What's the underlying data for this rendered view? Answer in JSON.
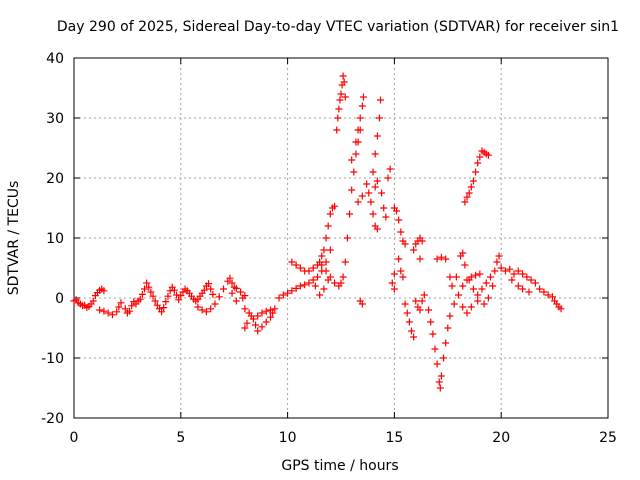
{
  "chart_data": {
    "type": "scatter",
    "title": "Day 290 of 2025, Sidereal Day-to-day VTEC variation (SDTVAR) for receiver sin1",
    "xlabel": "GPS time / hours",
    "ylabel": "SDTVAR / TECUs",
    "xlim": [
      0,
      25
    ],
    "ylim": [
      -20,
      40
    ],
    "xticks": [
      0,
      5,
      10,
      15,
      20,
      25
    ],
    "yticks": [
      -20,
      -10,
      0,
      10,
      20,
      30,
      40
    ],
    "grid": true,
    "marker": "+",
    "series": [
      {
        "name": "SDTVAR",
        "color": "#ff0000",
        "points": [
          [
            0.0,
            -0.5
          ],
          [
            0.1,
            -0.3
          ],
          [
            0.2,
            -0.8
          ],
          [
            0.3,
            -1.0
          ],
          [
            0.4,
            -1.3
          ],
          [
            0.5,
            -1.2
          ],
          [
            0.6,
            -1.6
          ],
          [
            0.7,
            -1.4
          ],
          [
            0.8,
            -1.0
          ],
          [
            0.9,
            -0.5
          ],
          [
            1.0,
            0.4
          ],
          [
            1.1,
            0.9
          ],
          [
            1.2,
            1.3
          ],
          [
            1.3,
            1.5
          ],
          [
            1.4,
            1.2
          ],
          [
            1.2,
            -2.0
          ],
          [
            1.4,
            -2.2
          ],
          [
            1.6,
            -2.5
          ],
          [
            1.8,
            -2.8
          ],
          [
            2.0,
            -2.3
          ],
          [
            2.1,
            -1.5
          ],
          [
            2.2,
            -0.8
          ],
          [
            2.4,
            -1.8
          ],
          [
            2.5,
            -2.5
          ],
          [
            2.6,
            -2.2
          ],
          [
            2.7,
            -1.3
          ],
          [
            2.8,
            -0.6
          ],
          [
            2.9,
            -1.0
          ],
          [
            3.0,
            -0.5
          ],
          [
            3.1,
            -0.2
          ],
          [
            3.2,
            0.6
          ],
          [
            3.3,
            1.5
          ],
          [
            3.4,
            2.5
          ],
          [
            3.5,
            1.8
          ],
          [
            3.6,
            1.0
          ],
          [
            3.7,
            0.3
          ],
          [
            3.8,
            -0.5
          ],
          [
            3.9,
            -1.2
          ],
          [
            4.0,
            -1.8
          ],
          [
            4.1,
            -2.3
          ],
          [
            4.2,
            -1.6
          ],
          [
            4.3,
            -0.6
          ],
          [
            4.4,
            0.3
          ],
          [
            4.5,
            1.2
          ],
          [
            4.6,
            1.8
          ],
          [
            4.7,
            1.3
          ],
          [
            4.8,
            0.5
          ],
          [
            4.9,
            -0.3
          ],
          [
            5.0,
            0.4
          ],
          [
            5.1,
            1.0
          ],
          [
            5.2,
            1.5
          ],
          [
            5.3,
            1.2
          ],
          [
            5.4,
            0.8
          ],
          [
            5.5,
            0.3
          ],
          [
            5.6,
            -0.2
          ],
          [
            5.7,
            -0.5
          ],
          [
            5.8,
            -0.2
          ],
          [
            5.9,
            0.3
          ],
          [
            6.0,
            0.8
          ],
          [
            6.1,
            1.3
          ],
          [
            6.2,
            2.0
          ],
          [
            6.3,
            2.4
          ],
          [
            6.4,
            1.5
          ],
          [
            6.5,
            0.6
          ],
          [
            5.8,
            -1.5
          ],
          [
            6.0,
            -2.0
          ],
          [
            6.2,
            -2.3
          ],
          [
            6.4,
            -1.8
          ],
          [
            6.6,
            -1.0
          ],
          [
            6.8,
            0.2
          ],
          [
            7.0,
            1.5
          ],
          [
            7.2,
            2.8
          ],
          [
            7.3,
            3.3
          ],
          [
            7.4,
            2.5
          ],
          [
            7.6,
            1.6
          ],
          [
            7.8,
            1.0
          ],
          [
            8.0,
            0.4
          ],
          [
            7.9,
            0.0
          ],
          [
            7.6,
            -0.5
          ],
          [
            7.4,
            0.8
          ],
          [
            7.5,
            1.8
          ],
          [
            8.0,
            -1.8
          ],
          [
            8.2,
            -2.5
          ],
          [
            8.4,
            -3.5
          ],
          [
            8.5,
            -4.5
          ],
          [
            8.3,
            -3.0
          ],
          [
            8.1,
            -4.2
          ],
          [
            8.0,
            -5.0
          ],
          [
            8.6,
            -5.5
          ],
          [
            8.8,
            -4.8
          ],
          [
            9.0,
            -4.0
          ],
          [
            9.2,
            -3.2
          ],
          [
            9.3,
            -2.5
          ],
          [
            8.6,
            -3.0
          ],
          [
            8.8,
            -2.5
          ],
          [
            9.0,
            -2.2
          ],
          [
            9.2,
            -2.0
          ],
          [
            9.4,
            -1.8
          ],
          [
            9.6,
            0.0
          ],
          [
            9.8,
            0.5
          ],
          [
            10.0,
            0.8
          ],
          [
            10.2,
            1.2
          ],
          [
            10.4,
            1.6
          ],
          [
            10.6,
            2.0
          ],
          [
            10.8,
            2.2
          ],
          [
            11.0,
            2.5
          ],
          [
            11.2,
            3.0
          ],
          [
            11.4,
            3.5
          ],
          [
            11.6,
            4.5
          ],
          [
            11.8,
            6.0
          ],
          [
            12.0,
            8.0
          ],
          [
            11.9,
            3.0
          ],
          [
            11.7,
            1.5
          ],
          [
            11.5,
            0.5
          ],
          [
            11.3,
            2.0
          ],
          [
            10.2,
            6.0
          ],
          [
            10.4,
            5.5
          ],
          [
            10.6,
            5.0
          ],
          [
            10.8,
            4.5
          ],
          [
            11.0,
            4.5
          ],
          [
            11.2,
            5.0
          ],
          [
            11.4,
            5.5
          ],
          [
            11.5,
            6.0
          ],
          [
            11.6,
            7.0
          ],
          [
            11.7,
            8.0
          ],
          [
            11.8,
            10.0
          ],
          [
            11.9,
            12.0
          ],
          [
            12.0,
            14.0
          ],
          [
            12.1,
            15.0
          ],
          [
            12.2,
            15.3
          ],
          [
            11.6,
            5.5
          ],
          [
            11.8,
            4.5
          ],
          [
            12.0,
            3.5
          ],
          [
            12.2,
            2.5
          ],
          [
            12.4,
            2.0
          ],
          [
            12.5,
            2.5
          ],
          [
            12.6,
            3.5
          ],
          [
            12.7,
            6.0
          ],
          [
            12.8,
            10.0
          ],
          [
            12.9,
            14.0
          ],
          [
            13.0,
            18.0
          ],
          [
            13.1,
            21.0
          ],
          [
            13.2,
            24.0
          ],
          [
            13.3,
            26.0
          ],
          [
            13.4,
            28.0
          ],
          [
            12.3,
            28.0
          ],
          [
            12.35,
            30.0
          ],
          [
            12.4,
            31.5
          ],
          [
            12.45,
            33.0
          ],
          [
            12.5,
            34.0
          ],
          [
            12.55,
            35.5
          ],
          [
            12.6,
            37.0
          ],
          [
            12.65,
            36.0
          ],
          [
            12.7,
            33.5
          ],
          [
            13.0,
            23.0
          ],
          [
            13.2,
            26.0
          ],
          [
            13.3,
            28.0
          ],
          [
            13.4,
            30.0
          ],
          [
            13.5,
            32.0
          ],
          [
            13.55,
            33.5
          ],
          [
            13.3,
            16.0
          ],
          [
            13.5,
            17.0
          ],
          [
            13.4,
            -0.5
          ],
          [
            13.5,
            -1.0
          ],
          [
            13.7,
            19.0
          ],
          [
            13.8,
            17.5
          ],
          [
            13.9,
            16.0
          ],
          [
            14.0,
            14.0
          ],
          [
            14.1,
            12.0
          ],
          [
            14.2,
            11.5
          ],
          [
            14.0,
            21.0
          ],
          [
            14.1,
            24.0
          ],
          [
            14.2,
            27.0
          ],
          [
            14.3,
            30.0
          ],
          [
            14.35,
            33.0
          ],
          [
            14.1,
            18.5
          ],
          [
            14.2,
            19.5
          ],
          [
            14.4,
            17.5
          ],
          [
            14.5,
            15.0
          ],
          [
            14.6,
            13.5
          ],
          [
            14.7,
            20.0
          ],
          [
            14.8,
            21.5
          ],
          [
            15.0,
            15.0
          ],
          [
            15.1,
            14.5
          ],
          [
            15.2,
            13.0
          ],
          [
            15.3,
            11.0
          ],
          [
            15.4,
            9.5
          ],
          [
            15.5,
            9.0
          ],
          [
            15.2,
            6.5
          ],
          [
            15.3,
            4.5
          ],
          [
            15.4,
            3.5
          ],
          [
            15.0,
            4.0
          ],
          [
            14.9,
            2.5
          ],
          [
            15.0,
            1.5
          ],
          [
            15.5,
            -1.0
          ],
          [
            15.6,
            -2.5
          ],
          [
            15.7,
            -4.0
          ],
          [
            15.8,
            -5.5
          ],
          [
            15.9,
            -6.5
          ],
          [
            15.9,
            8.0
          ],
          [
            16.0,
            9.0
          ],
          [
            16.1,
            9.5
          ],
          [
            16.2,
            10.0
          ],
          [
            16.3,
            9.5
          ],
          [
            16.2,
            6.5
          ],
          [
            16.0,
            -0.5
          ],
          [
            16.1,
            -1.5
          ],
          [
            16.2,
            -2.0
          ],
          [
            16.3,
            -0.5
          ],
          [
            16.4,
            0.5
          ],
          [
            16.6,
            -2.0
          ],
          [
            16.7,
            -4.0
          ],
          [
            16.8,
            -6.0
          ],
          [
            16.9,
            -8.5
          ],
          [
            17.0,
            -11.0
          ],
          [
            17.1,
            -14.0
          ],
          [
            17.15,
            -15.0
          ],
          [
            17.2,
            -13.0
          ],
          [
            17.3,
            -10.0
          ],
          [
            17.4,
            -7.5
          ],
          [
            17.5,
            -5.0
          ],
          [
            17.6,
            -3.0
          ],
          [
            17.8,
            -1.0
          ],
          [
            18.0,
            0.5
          ],
          [
            18.2,
            2.0
          ],
          [
            18.4,
            3.0
          ],
          [
            18.6,
            3.5
          ],
          [
            18.8,
            3.8
          ],
          [
            19.0,
            4.0
          ],
          [
            17.0,
            6.5
          ],
          [
            17.2,
            6.8
          ],
          [
            17.4,
            6.5
          ],
          [
            17.6,
            3.5
          ],
          [
            17.7,
            2.0
          ],
          [
            17.9,
            3.5
          ],
          [
            18.1,
            7.0
          ],
          [
            18.2,
            7.5
          ],
          [
            18.3,
            5.5
          ],
          [
            18.5,
            3.0
          ],
          [
            18.7,
            1.5
          ],
          [
            18.9,
            0.5
          ],
          [
            19.1,
            1.5
          ],
          [
            19.3,
            2.5
          ],
          [
            19.5,
            3.5
          ],
          [
            19.7,
            4.5
          ],
          [
            19.8,
            6.0
          ],
          [
            19.9,
            7.0
          ],
          [
            20.0,
            5.0
          ],
          [
            19.6,
            2.0
          ],
          [
            19.4,
            0.0
          ],
          [
            19.2,
            -1.0
          ],
          [
            18.9,
            -0.5
          ],
          [
            18.6,
            -1.5
          ],
          [
            18.4,
            -2.5
          ],
          [
            18.2,
            -1.5
          ],
          [
            20.2,
            4.5
          ],
          [
            20.4,
            4.8
          ],
          [
            20.6,
            4.0
          ],
          [
            20.8,
            4.5
          ],
          [
            21.0,
            4.0
          ],
          [
            21.2,
            3.5
          ],
          [
            21.4,
            3.0
          ],
          [
            21.6,
            2.5
          ],
          [
            21.8,
            1.5
          ],
          [
            22.0,
            1.0
          ],
          [
            22.2,
            0.5
          ],
          [
            22.4,
            0.2
          ],
          [
            22.5,
            -0.5
          ],
          [
            22.6,
            -1.0
          ],
          [
            22.7,
            -1.5
          ],
          [
            22.8,
            -1.8
          ],
          [
            20.5,
            3.0
          ],
          [
            20.8,
            2.0
          ],
          [
            21.0,
            1.5
          ],
          [
            21.3,
            1.0
          ],
          [
            18.3,
            16.0
          ],
          [
            18.4,
            16.8
          ],
          [
            18.5,
            17.5
          ],
          [
            18.6,
            18.5
          ],
          [
            18.7,
            19.5
          ],
          [
            18.8,
            21.0
          ],
          [
            18.9,
            22.5
          ],
          [
            19.0,
            23.5
          ],
          [
            19.1,
            24.5
          ],
          [
            19.2,
            24.3
          ],
          [
            19.3,
            24.0
          ],
          [
            19.4,
            23.8
          ]
        ]
      }
    ]
  }
}
